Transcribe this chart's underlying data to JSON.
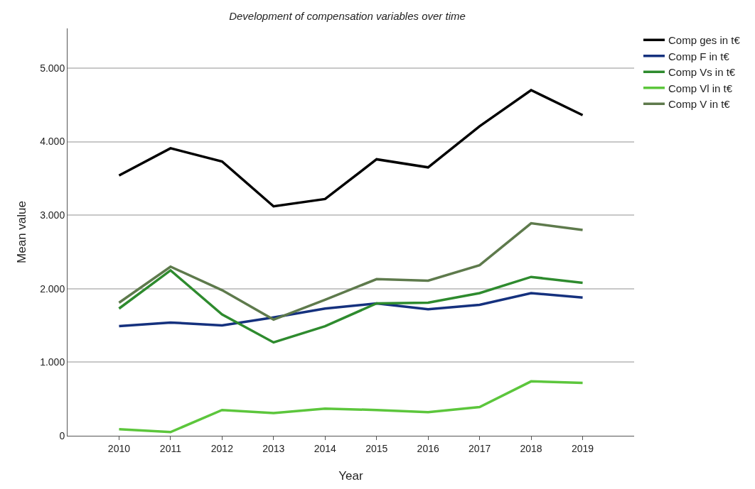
{
  "chart_data": {
    "type": "line",
    "title": "Development of compensation variables over time",
    "xlabel": "Year",
    "ylabel": "Mean value",
    "x": [
      2010,
      2011,
      2012,
      2013,
      2014,
      2015,
      2016,
      2017,
      2018,
      2019
    ],
    "series": [
      {
        "name": "Comp ges in t€",
        "color": "#000000",
        "values": [
          3540,
          3910,
          3730,
          3120,
          3220,
          3760,
          3650,
          4210,
          4700,
          4360
        ]
      },
      {
        "name": "Comp F in t€",
        "color": "#15317e",
        "values": [
          1490,
          1540,
          1500,
          1610,
          1730,
          1800,
          1720,
          1780,
          1940,
          1880
        ]
      },
      {
        "name": "Comp Vs in t€",
        "color": "#2e8b2e",
        "values": [
          1730,
          2250,
          1650,
          1270,
          1490,
          1800,
          1810,
          1940,
          2160,
          2080
        ]
      },
      {
        "name": "Comp Vl in t€",
        "color": "#5cc63c",
        "values": [
          90,
          50,
          350,
          310,
          370,
          350,
          320,
          390,
          740,
          720
        ]
      },
      {
        "name": "Comp V in t€",
        "color": "#5e7a4c",
        "values": [
          1810,
          2300,
          1980,
          1580,
          1850,
          2130,
          2110,
          2320,
          2890,
          2800
        ]
      }
    ],
    "xlim": [
      2009,
      2020
    ],
    "xticks": [
      2010,
      2011,
      2012,
      2013,
      2014,
      2015,
      2016,
      2017,
      2018,
      2019
    ],
    "ylim": [
      0,
      5540
    ],
    "yticks": [
      {
        "value": 0,
        "label": "0"
      },
      {
        "value": 1000,
        "label": "1.000"
      },
      {
        "value": 2000,
        "label": "2.000"
      },
      {
        "value": 3000,
        "label": "3.000"
      },
      {
        "value": 4000,
        "label": "4.000"
      },
      {
        "value": 5000,
        "label": "5.000"
      }
    ],
    "grid": "y",
    "legend": "top right",
    "marker": "none",
    "line_style": "solid"
  }
}
